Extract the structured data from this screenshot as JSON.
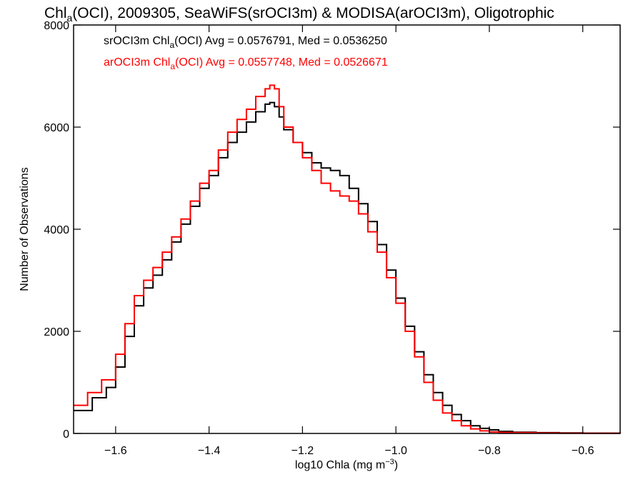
{
  "chart_data": {
    "type": "line",
    "title": {
      "prefix": "Chl",
      "sub": "a",
      "suffix": "(OCI), 2009305, SeaWiFS(srOCI3m) & MODISA(arOCI3m), Oligotrophic"
    },
    "xlabel": {
      "main": "log10 Chla (mg m",
      "sup": "−3",
      "end": ")"
    },
    "ylabel": "Number of Observations",
    "xlim": [
      -1.69,
      -0.52
    ],
    "ylim": [
      0,
      8000
    ],
    "x_ticks": [
      -1.6,
      -1.4,
      -1.2,
      -1.0,
      -0.8,
      -0.6
    ],
    "x_tick_labels": [
      "−1.6",
      "−1.4",
      "−1.2",
      "−1.0",
      "−0.8",
      "−0.6"
    ],
    "y_ticks": [
      0,
      2000,
      4000,
      6000,
      8000
    ],
    "y_tick_labels": [
      "0",
      "2000",
      "4000",
      "6000",
      "8000"
    ],
    "legend": [
      {
        "prefix": "srOCI3m Chl",
        "sub": "a",
        "suffix": "(OCI) Avg = 0.0576791, Med = 0.0536250",
        "color": "#000000"
      },
      {
        "prefix": "arOCI3m Chl",
        "sub": "a",
        "suffix": "(OCI) Avg = 0.0557748, Med = 0.0526671",
        "color": "#ff0000"
      }
    ],
    "series": [
      {
        "name": "srOCI3m",
        "color": "#000000",
        "x": [
          -1.69,
          -1.65,
          -1.62,
          -1.6,
          -1.58,
          -1.56,
          -1.54,
          -1.52,
          -1.5,
          -1.48,
          -1.46,
          -1.44,
          -1.42,
          -1.4,
          -1.38,
          -1.36,
          -1.34,
          -1.32,
          -1.3,
          -1.28,
          -1.27,
          -1.26,
          -1.25,
          -1.24,
          -1.22,
          -1.2,
          -1.18,
          -1.16,
          -1.14,
          -1.12,
          -1.1,
          -1.08,
          -1.06,
          -1.04,
          -1.02,
          -1.0,
          -0.98,
          -0.96,
          -0.94,
          -0.92,
          -0.9,
          -0.88,
          -0.86,
          -0.84,
          -0.82,
          -0.8,
          -0.78,
          -0.75,
          -0.7,
          -0.65,
          -0.6,
          -0.52
        ],
        "y": [
          450,
          700,
          900,
          1300,
          1900,
          2500,
          2850,
          3100,
          3400,
          3750,
          4100,
          4450,
          4800,
          5050,
          5400,
          5700,
          5900,
          6100,
          6300,
          6450,
          6480,
          6400,
          6200,
          5950,
          5700,
          5500,
          5300,
          5200,
          5150,
          5050,
          4800,
          4500,
          4150,
          3700,
          3200,
          2650,
          2100,
          1600,
          1150,
          800,
          550,
          370,
          250,
          150,
          100,
          70,
          40,
          25,
          15,
          10,
          5,
          0
        ]
      },
      {
        "name": "arOCI3m",
        "color": "#ff0000",
        "x": [
          -1.69,
          -1.66,
          -1.63,
          -1.6,
          -1.58,
          -1.56,
          -1.54,
          -1.52,
          -1.5,
          -1.48,
          -1.46,
          -1.44,
          -1.42,
          -1.4,
          -1.38,
          -1.36,
          -1.34,
          -1.32,
          -1.3,
          -1.28,
          -1.27,
          -1.26,
          -1.25,
          -1.24,
          -1.22,
          -1.2,
          -1.18,
          -1.16,
          -1.14,
          -1.12,
          -1.1,
          -1.08,
          -1.06,
          -1.04,
          -1.02,
          -1.0,
          -0.98,
          -0.96,
          -0.94,
          -0.92,
          -0.9,
          -0.88,
          -0.86,
          -0.84,
          -0.82,
          -0.8,
          -0.78,
          -0.75,
          -0.7,
          -0.65,
          -0.6,
          -0.52
        ],
        "y": [
          550,
          800,
          1050,
          1550,
          2150,
          2700,
          3000,
          3250,
          3550,
          3850,
          4200,
          4550,
          4900,
          5150,
          5550,
          5900,
          6150,
          6350,
          6600,
          6750,
          6820,
          6750,
          6400,
          6000,
          5700,
          5400,
          5150,
          4900,
          4750,
          4650,
          4550,
          4300,
          3950,
          3550,
          3050,
          2550,
          2000,
          1500,
          1000,
          650,
          400,
          250,
          150,
          90,
          50,
          30,
          20,
          15,
          8,
          5,
          3,
          0
        ]
      }
    ]
  }
}
